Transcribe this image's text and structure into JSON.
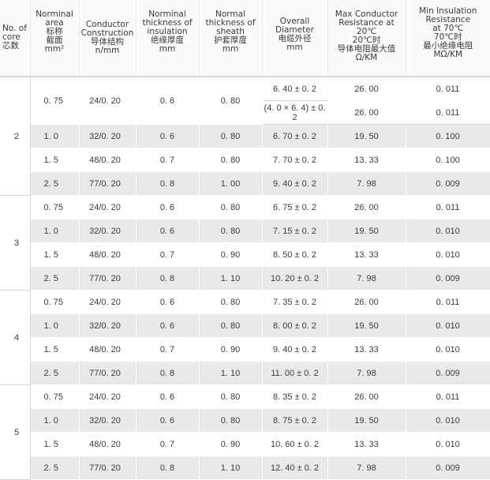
{
  "headers": {
    "core": "No. of\ncore\n芯数",
    "area": "Norminal\narea\n标称\n截面\nmm²",
    "conductor": "Conductor\nConstruction\n导体结构\nn/mm",
    "insulation": "Norminal\nthickness of\ninsulation\n绝缘厚度\nmm",
    "sheath": "Normal\nthickness of\nsheath\n护套厚度\nmm",
    "overall": "Overall\nDiameter\n电缆外径\nmm",
    "resistance": "Max Conductor\nResistance at 20℃\n20℃时\n导体电阻最大值\nΩ/KM",
    "insres": "Min Insulation\nResistance\nat 70℃\n70℃时\n最小绝缘电阻\nMΩ/KM"
  },
  "groups": [
    {
      "core": "2",
      "rows": [
        {
          "area": "0. 75",
          "cond": "24/0. 20",
          "ins": "0. 6",
          "sheath": "0. 80",
          "od": "6. 40 ± 0. 2",
          "res": "26. 00",
          "ir": "0. 011"
        },
        {
          "od": "(4. 0 × 6. 4) ± 0. 2",
          "res": "26. 00",
          "ir": "0. 011"
        },
        {
          "area": "1. 0",
          "cond": "32/0. 20",
          "ins": "0. 6",
          "sheath": "0. 80",
          "od": "6. 70 ± 0. 2",
          "res": "19. 50",
          "ir": "0. 100"
        },
        {
          "area": "1. 5",
          "cond": "48/0. 20",
          "ins": "0. 7",
          "sheath": "0. 80",
          "od": "7. 70 ± 0. 2",
          "res": "13. 33",
          "ir": "0. 100"
        },
        {
          "area": "2. 5",
          "cond": "77/0. 20",
          "ins": "0. 8",
          "sheath": "1. 00",
          "od": "9. 40 ± 0. 2",
          "res": "7. 98",
          "ir": "0. 009"
        }
      ]
    },
    {
      "core": "3",
      "rows": [
        {
          "area": "0. 75",
          "cond": "24/0. 20",
          "ins": "0. 6",
          "sheath": "0. 80",
          "od": "6. 75 ± 0. 2",
          "res": "26. 00",
          "ir": "0. 011"
        },
        {
          "area": "1. 0",
          "cond": "32/0. 20",
          "ins": "0. 6",
          "sheath": "0. 80",
          "od": "7. 15 ± 0. 2",
          "res": "19. 50",
          "ir": "0. 010"
        },
        {
          "area": "1. 5",
          "cond": "48/0. 20",
          "ins": "0. 7",
          "sheath": "0. 90",
          "od": "8. 50 ± 0. 2",
          "res": "13. 33",
          "ir": "0. 010"
        },
        {
          "area": "2. 5",
          "cond": "77/0. 20",
          "ins": "0. 8",
          "sheath": "1. 10",
          "od": "10. 20 ± 0. 2",
          "res": "7. 98",
          "ir": "0. 009"
        }
      ]
    },
    {
      "core": "4",
      "rows": [
        {
          "area": "0. 75",
          "cond": "24/0. 20",
          "ins": "0. 6",
          "sheath": "0. 80",
          "od": "7. 35 ± 0. 2",
          "res": "26. 00",
          "ir": "0. 011"
        },
        {
          "area": "1. 0",
          "cond": "32/0. 20",
          "ins": "0. 6",
          "sheath": "0. 80",
          "od": "8. 00 ± 0. 2",
          "res": "19. 50",
          "ir": "0. 010"
        },
        {
          "area": "1. 5",
          "cond": "48/0. 20",
          "ins": "0. 7",
          "sheath": "0. 90",
          "od": "9. 40 ± 0. 2",
          "res": "13. 33",
          "ir": "0. 010"
        },
        {
          "area": "2. 5",
          "cond": "77/0. 20",
          "ins": "0. 8",
          "sheath": "1. 10",
          "od": "11. 00 ± 0. 2",
          "res": "7. 98",
          "ir": "0. 009"
        }
      ]
    },
    {
      "core": "5",
      "rows": [
        {
          "area": "0. 75",
          "cond": "24/0. 20",
          "ins": "0. 6",
          "sheath": "0. 80",
          "od": "8. 35 ± 0. 2",
          "res": "26. 00",
          "ir": "0. 011"
        },
        {
          "area": "1. 0",
          "cond": "32/0. 20",
          "ins": "0. 6",
          "sheath": "0. 80",
          "od": "8. 75 ± 0. 2",
          "res": "19. 50",
          "ir": "0. 010"
        },
        {
          "area": "1. 5",
          "cond": "48/0. 20",
          "ins": "0. 7",
          "sheath": "0. 90",
          "od": "10. 60 ± 0. 2",
          "res": "13. 33",
          "ir": "0. 010"
        },
        {
          "area": "2. 5",
          "cond": "77/0. 20",
          "ins": "0. 8",
          "sheath": "1. 10",
          "od": "12. 40 ± 0. 2",
          "res": "7. 98",
          "ir": "0. 009"
        }
      ]
    }
  ]
}
